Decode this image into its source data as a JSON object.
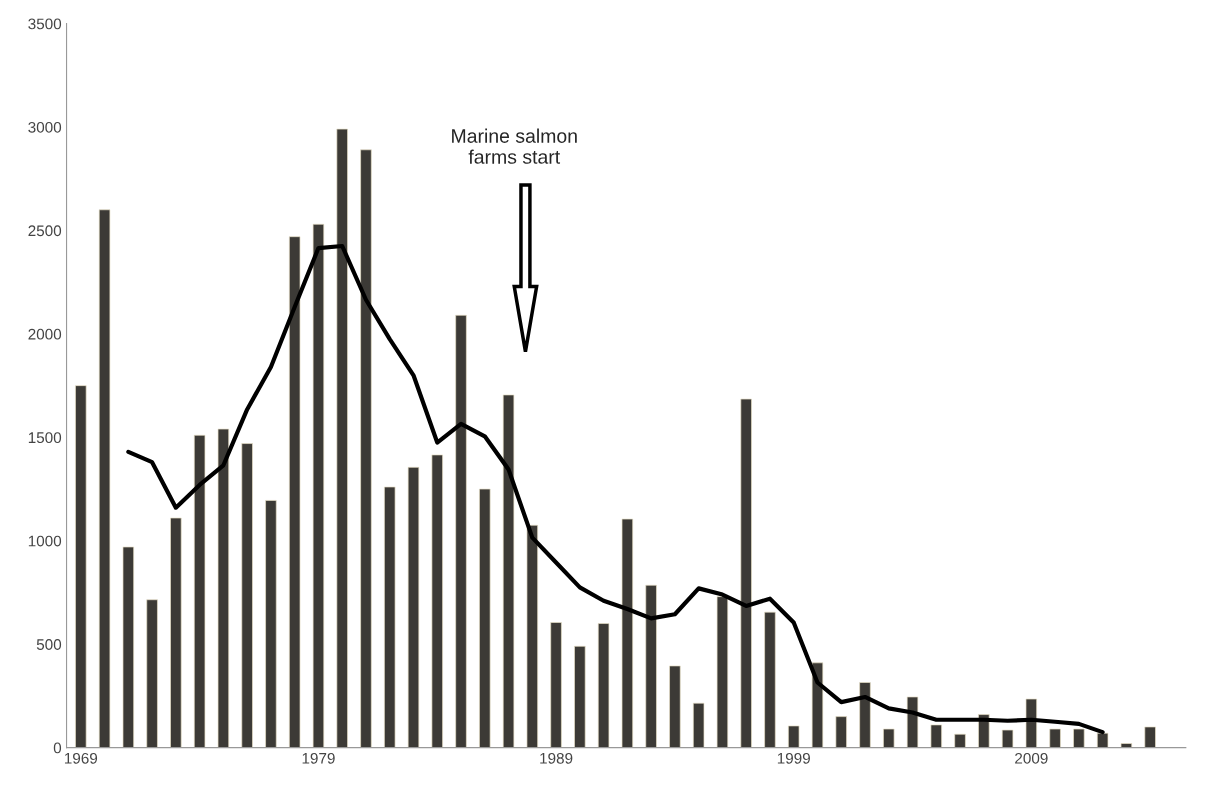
{
  "chart_data": {
    "type": "bar",
    "x": [
      1969,
      1970,
      1971,
      1972,
      1973,
      1974,
      1975,
      1976,
      1977,
      1978,
      1979,
      1980,
      1981,
      1982,
      1983,
      1984,
      1985,
      1986,
      1987,
      1988,
      1989,
      1990,
      1991,
      1992,
      1993,
      1994,
      1995,
      1996,
      1997,
      1998,
      1999,
      2000,
      2001,
      2002,
      2003,
      2004,
      2005,
      2006,
      2007,
      2008,
      2009,
      2010,
      2011,
      2012,
      2013,
      2014
    ],
    "series": [
      {
        "color": "#3c3a36",
        "values": [
          1750,
          2600,
          970,
          715,
          1110,
          1510,
          1540,
          1470,
          1195,
          2470,
          2530,
          2990,
          2890,
          1260,
          1355,
          1415,
          2090,
          1250,
          1705,
          1075,
          605,
          490,
          600,
          1105,
          785,
          395,
          215,
          730,
          1685,
          655,
          105,
          410,
          150,
          315,
          90,
          245,
          110,
          65,
          160,
          85,
          235,
          90,
          90,
          70,
          20,
          100
        ]
      },
      {
        "type": "line",
        "color": "#000000",
        "x": [
          1971,
          1972,
          1973,
          1974,
          1975,
          1976,
          1977,
          1978,
          1979,
          1980,
          1981,
          1982,
          1983,
          1984,
          1985,
          1986,
          1987,
          1988,
          1989,
          1990,
          1991,
          1992,
          1993,
          1994,
          1995,
          1996,
          1997,
          1998,
          1999,
          2000,
          2001,
          2002,
          2003,
          2004,
          2005,
          2006,
          2007,
          2008,
          2009,
          2010,
          2011,
          2012
        ],
        "values": [
          1430,
          1380,
          1160,
          1270,
          1365,
          1635,
          1840,
          2130,
          2415,
          2425,
          2165,
          1975,
          1800,
          1475,
          1565,
          1505,
          1345,
          1015,
          895,
          775,
          710,
          670,
          625,
          645,
          770,
          740,
          685,
          720,
          605,
          315,
          220,
          245,
          190,
          170,
          135,
          135,
          135,
          130,
          135,
          125,
          115,
          75
        ]
      }
    ],
    "xlim": [
      1968.4,
      2015.5
    ],
    "xticks": [
      1969,
      1979,
      1989,
      1999,
      2009
    ],
    "ylim": [
      0,
      3500
    ],
    "yticks": [
      0,
      500,
      1000,
      1500,
      2000,
      2500,
      3000,
      3500
    ],
    "grid": false,
    "line_style": "solid",
    "marker": "none",
    "annotations": [
      "Marine salmon\nfarms start"
    ]
  }
}
